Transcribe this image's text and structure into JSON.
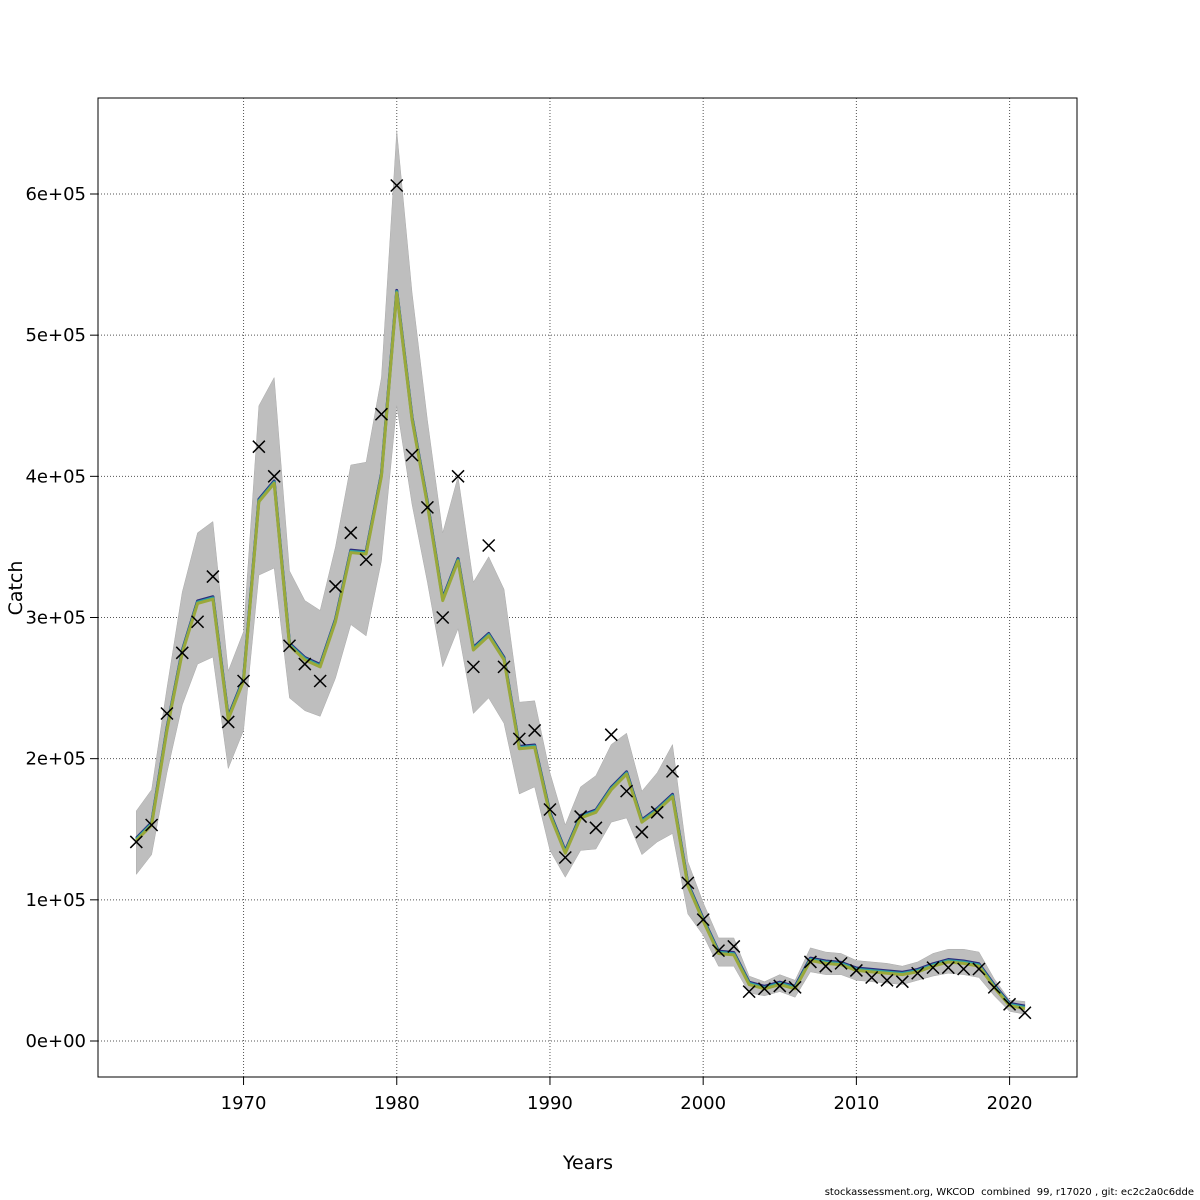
{
  "chart_data": {
    "type": "line",
    "title": "",
    "xlabel": "Years",
    "ylabel": "Catch",
    "xlim": [
      1960.5,
      2024.4
    ],
    "ylim": [
      -25500,
      668000
    ],
    "grid": true,
    "x_ticks": [
      1970,
      1980,
      1990,
      2000,
      2010,
      2020
    ],
    "x_tick_labels": [
      "1970",
      "1980",
      "1990",
      "2000",
      "2010",
      "2020"
    ],
    "y_ticks": [
      0,
      100000,
      200000,
      300000,
      400000,
      500000,
      600000
    ],
    "y_tick_labels": [
      "0e+00",
      "1e+05",
      "2e+05",
      "3e+05",
      "4e+05",
      "5e+05",
      "6e+05"
    ],
    "years": [
      1963,
      1964,
      1965,
      1966,
      1967,
      1968,
      1969,
      1970,
      1971,
      1972,
      1973,
      1974,
      1975,
      1976,
      1977,
      1978,
      1979,
      1980,
      1981,
      1982,
      1983,
      1984,
      1985,
      1986,
      1987,
      1988,
      1989,
      1990,
      1991,
      1992,
      1993,
      1994,
      1995,
      1996,
      1997,
      1998,
      1999,
      2000,
      2001,
      2002,
      2003,
      2004,
      2005,
      2006,
      2007,
      2008,
      2009,
      2010,
      2011,
      2012,
      2013,
      2014,
      2015,
      2016,
      2017,
      2018,
      2019,
      2020,
      2021
    ],
    "observed": [
      141000,
      153000,
      232000,
      275000,
      297000,
      329000,
      226000,
      255000,
      421000,
      400000,
      280000,
      267000,
      255000,
      322000,
      360000,
      341000,
      444000,
      606000,
      415000,
      378000,
      300000,
      400000,
      265000,
      351000,
      265000,
      214000,
      220000,
      164000,
      130000,
      159000,
      151000,
      217000,
      177000,
      148000,
      162000,
      191000,
      112000,
      86000,
      64000,
      67000,
      35000,
      37000,
      39000,
      38000,
      56000,
      53000,
      55000,
      50000,
      45000,
      43000,
      42000,
      48000,
      52000,
      52000,
      51000,
      51000,
      38000,
      26000,
      20000
    ],
    "fit": [
      142000,
      153000,
      220000,
      275000,
      310000,
      313000,
      228000,
      255000,
      382000,
      395000,
      280000,
      270000,
      265000,
      297000,
      346000,
      345000,
      400000,
      530000,
      440000,
      380000,
      312000,
      340000,
      277000,
      287000,
      270000,
      207000,
      208000,
      160000,
      133000,
      158000,
      162000,
      178000,
      189000,
      155000,
      163000,
      173000,
      110000,
      85000,
      62000,
      61000,
      40000,
      37000,
      40000,
      37000,
      57000,
      55000,
      54000,
      50000,
      49000,
      48000,
      47000,
      49000,
      53000,
      56000,
      55000,
      53000,
      38000,
      25000,
      23000
    ],
    "upper": [
      163000,
      178000,
      250000,
      318000,
      360000,
      368000,
      262000,
      290000,
      450000,
      470000,
      333000,
      312000,
      305000,
      350000,
      408000,
      410000,
      470000,
      645000,
      530000,
      440000,
      360000,
      400000,
      325000,
      343000,
      320000,
      240000,
      241000,
      190000,
      153000,
      180000,
      188000,
      210000,
      218000,
      177000,
      190000,
      210000,
      127000,
      98000,
      73000,
      73000,
      46000,
      42000,
      47000,
      43000,
      66000,
      63000,
      62000,
      57000,
      56000,
      55000,
      53000,
      56000,
      62000,
      65000,
      65000,
      63000,
      44000,
      29000,
      28000
    ],
    "lower": [
      118000,
      132000,
      190000,
      238000,
      267000,
      272000,
      193000,
      220000,
      330000,
      335000,
      243000,
      234000,
      230000,
      257000,
      295000,
      287000,
      340000,
      450000,
      380000,
      325000,
      265000,
      292000,
      232000,
      243000,
      225000,
      175000,
      180000,
      135000,
      116000,
      135000,
      136000,
      155000,
      158000,
      132000,
      141000,
      147000,
      90000,
      75000,
      53000,
      53000,
      34000,
      32000,
      35000,
      31000,
      49000,
      47000,
      47000,
      43000,
      42000,
      41000,
      40000,
      43000,
      46000,
      48000,
      47000,
      45000,
      32000,
      21000,
      19000
    ],
    "colors": {
      "band": "#bebebe",
      "lines": [
        "#2b2a7c",
        "#2a9fa3",
        "#9aa83a"
      ],
      "observed": "#000000"
    }
  },
  "footer": "stockassessment.org, WKCOD  combined  99, r17020 , git: ec2c2a0c6dde"
}
